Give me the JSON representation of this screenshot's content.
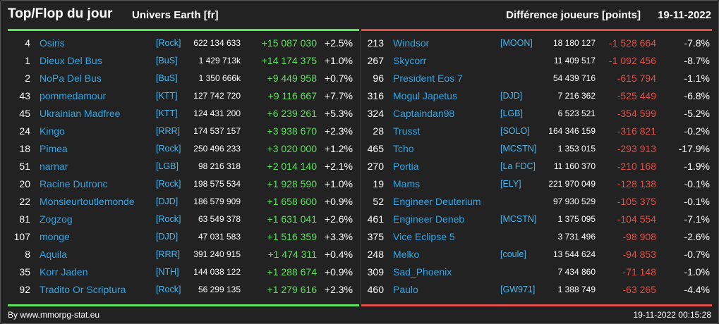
{
  "header": {
    "title": "Top/Flop du jour",
    "subtitle": "Univers Earth [fr]",
    "metric": "Différence joueurs [points]",
    "date": "19-11-2022"
  },
  "colors": {
    "gain": "#5be35b",
    "loss": "#e0504a",
    "link": "#2ea6e8",
    "background": "#222222"
  },
  "top": [
    {
      "rank": "4",
      "name": "Osiris",
      "tag": "[Rock]",
      "points": "622 134 633",
      "diff": "+15 087 030",
      "pct": "+2.5%"
    },
    {
      "rank": "1",
      "name": "Dieux Del Bus",
      "tag": "[BuS]",
      "points": "1 429 713k",
      "diff": "+14 174 375",
      "pct": "+1.0%"
    },
    {
      "rank": "2",
      "name": "NoPa Del Bus",
      "tag": "[BuS]",
      "points": "1 350 666k",
      "diff": "+9 449 958",
      "pct": "+0.7%"
    },
    {
      "rank": "43",
      "name": "pommedamour",
      "tag": "[KTT]",
      "points": "127 742 720",
      "diff": "+9 116 667",
      "pct": "+7.7%"
    },
    {
      "rank": "45",
      "name": "Ukrainian Madfree",
      "tag": "[KTT]",
      "points": "124 431 200",
      "diff": "+6 239 261",
      "pct": "+5.3%"
    },
    {
      "rank": "24",
      "name": "Kingo",
      "tag": "[RRR]",
      "points": "174 537 157",
      "diff": "+3 938 670",
      "pct": "+2.3%"
    },
    {
      "rank": "18",
      "name": "Pimea",
      "tag": "[Rock]",
      "points": "250 496 233",
      "diff": "+3 020 000",
      "pct": "+1.2%"
    },
    {
      "rank": "51",
      "name": "narnar",
      "tag": "[LGB]",
      "points": "98 216 318",
      "diff": "+2 014 140",
      "pct": "+2.1%"
    },
    {
      "rank": "20",
      "name": "Racine Dutronc",
      "tag": "[Rock]",
      "points": "198 575 534",
      "diff": "+1 928 590",
      "pct": "+1.0%"
    },
    {
      "rank": "22",
      "name": "Monsieurtoutlemonde",
      "tag": "[DJD]",
      "points": "186 579 909",
      "diff": "+1 658 600",
      "pct": "+0.9%"
    },
    {
      "rank": "81",
      "name": "Zogzog",
      "tag": "[Rock]",
      "points": "63 549 378",
      "diff": "+1 631 041",
      "pct": "+2.6%"
    },
    {
      "rank": "107",
      "name": "monge",
      "tag": "[DJD]",
      "points": "47 031 583",
      "diff": "+1 516 359",
      "pct": "+3.3%"
    },
    {
      "rank": "8",
      "name": "Aquila",
      "tag": "[RRR]",
      "points": "391 240 915",
      "diff": "+1 474 311",
      "pct": "+0.4%"
    },
    {
      "rank": "35",
      "name": "Korr Jaden",
      "tag": "[NTH]",
      "points": "144 038 122",
      "diff": "+1 288 674",
      "pct": "+0.9%"
    },
    {
      "rank": "92",
      "name": "Tradito Or Scriptura",
      "tag": "[Rock]",
      "points": "56 299 135",
      "diff": "+1 279 616",
      "pct": "+2.3%"
    }
  ],
  "flop": [
    {
      "rank": "213",
      "name": "Windsor",
      "tag": "[MOON]",
      "points": "18 180 127",
      "diff": "-1 528 664",
      "pct": "-7.8%"
    },
    {
      "rank": "267",
      "name": "Skycorr",
      "tag": "",
      "points": "11 409 517",
      "diff": "-1 092 456",
      "pct": "-8.7%"
    },
    {
      "rank": "96",
      "name": "President Eos 7",
      "tag": "",
      "points": "54 439 716",
      "diff": "-615 794",
      "pct": "-1.1%"
    },
    {
      "rank": "316",
      "name": "Mogul Japetus",
      "tag": "[DJD]",
      "points": "7 216 362",
      "diff": "-525 449",
      "pct": "-6.8%"
    },
    {
      "rank": "324",
      "name": "Captaindan98",
      "tag": "[LGB]",
      "points": "6 523 521",
      "diff": "-354 599",
      "pct": "-5.2%"
    },
    {
      "rank": "28",
      "name": "Trusst",
      "tag": "[SOLO]",
      "points": "164 346 159",
      "diff": "-316 821",
      "pct": "-0.2%"
    },
    {
      "rank": "465",
      "name": "Tcho",
      "tag": "[MCSTN]",
      "points": "1 353 015",
      "diff": "-293 913",
      "pct": "-17.9%"
    },
    {
      "rank": "270",
      "name": "Portia",
      "tag": "[La FDC]",
      "points": "11 160 370",
      "diff": "-210 168",
      "pct": "-1.9%"
    },
    {
      "rank": "19",
      "name": "Mams",
      "tag": "[ELY]",
      "points": "221 970 049",
      "diff": "-128 138",
      "pct": "-0.1%"
    },
    {
      "rank": "52",
      "name": "Engineer Deuterium",
      "tag": "",
      "points": "97 930 529",
      "diff": "-105 375",
      "pct": "-0.1%"
    },
    {
      "rank": "461",
      "name": "Engineer Deneb",
      "tag": "[MCSTN]",
      "points": "1 375 095",
      "diff": "-104 554",
      "pct": "-7.1%"
    },
    {
      "rank": "375",
      "name": "Vice Eclipse 5",
      "tag": "",
      "points": "3 731 496",
      "diff": "-98 908",
      "pct": "-2.6%"
    },
    {
      "rank": "248",
      "name": "Melko",
      "tag": "[coule]",
      "points": "13 544 624",
      "diff": "-94 853",
      "pct": "-0.7%"
    },
    {
      "rank": "309",
      "name": "Sad_Phoenix",
      "tag": "",
      "points": "7 434 860",
      "diff": "-71 148",
      "pct": "-1.0%"
    },
    {
      "rank": "460",
      "name": "Paulo",
      "tag": "[GW971]",
      "points": "1 388 749",
      "diff": "-63 265",
      "pct": "-4.4%"
    }
  ],
  "footer": {
    "source": "By www.mmorpg-stat.eu",
    "timestamp": "19-11-2022 00:15:28"
  }
}
